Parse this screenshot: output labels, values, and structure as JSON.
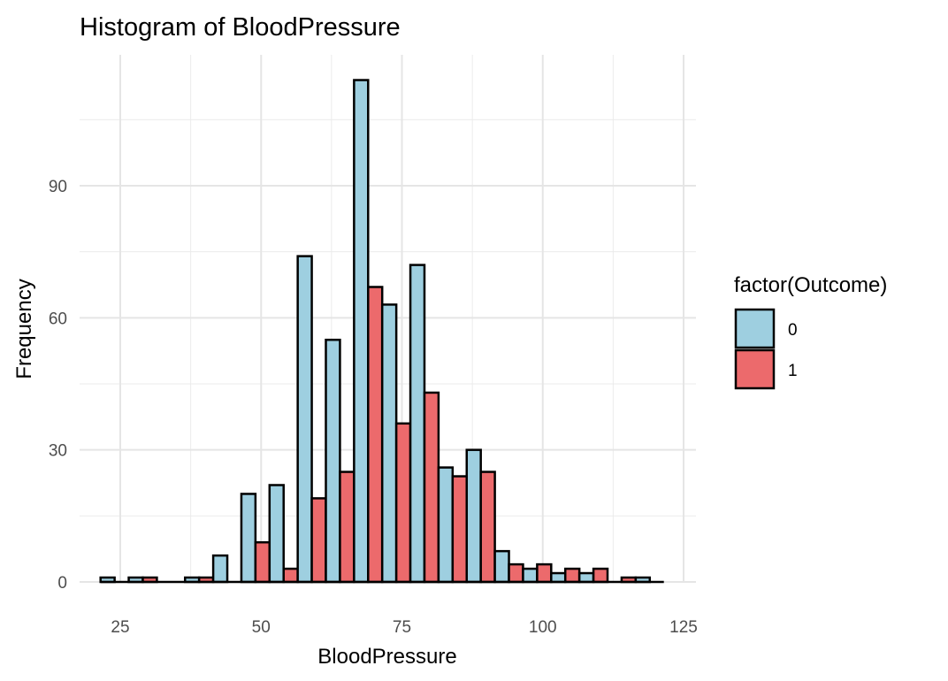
{
  "chart_data": {
    "type": "bar",
    "title": "Histogram of BloodPressure",
    "xlabel": "BloodPressure",
    "ylabel": "Frequency",
    "xlim": [
      20,
      125
    ],
    "ylim": [
      0,
      118
    ],
    "x_ticks": [
      25,
      50,
      75,
      100,
      125
    ],
    "y_ticks": [
      0,
      30,
      60,
      90
    ],
    "grid": true,
    "bin_width": 5,
    "bin_centers": [
      24,
      29,
      34,
      39,
      44,
      49,
      54,
      59,
      64,
      69,
      74,
      79,
      84,
      89,
      94,
      99,
      104,
      109,
      114,
      119
    ],
    "legend": {
      "title": "factor(Outcome)",
      "position": "right"
    },
    "series": [
      {
        "name": "0",
        "color": "#9ecfe0",
        "values": [
          1,
          1,
          0,
          1,
          6,
          20,
          22,
          74,
          55,
          114,
          63,
          72,
          26,
          30,
          7,
          3,
          2,
          2,
          0,
          1
        ]
      },
      {
        "name": "1",
        "color": "#ec6a6c",
        "values": [
          0,
          1,
          0,
          1,
          0,
          9,
          3,
          19,
          25,
          67,
          36,
          43,
          24,
          25,
          4,
          4,
          3,
          3,
          1,
          0
        ]
      }
    ]
  }
}
